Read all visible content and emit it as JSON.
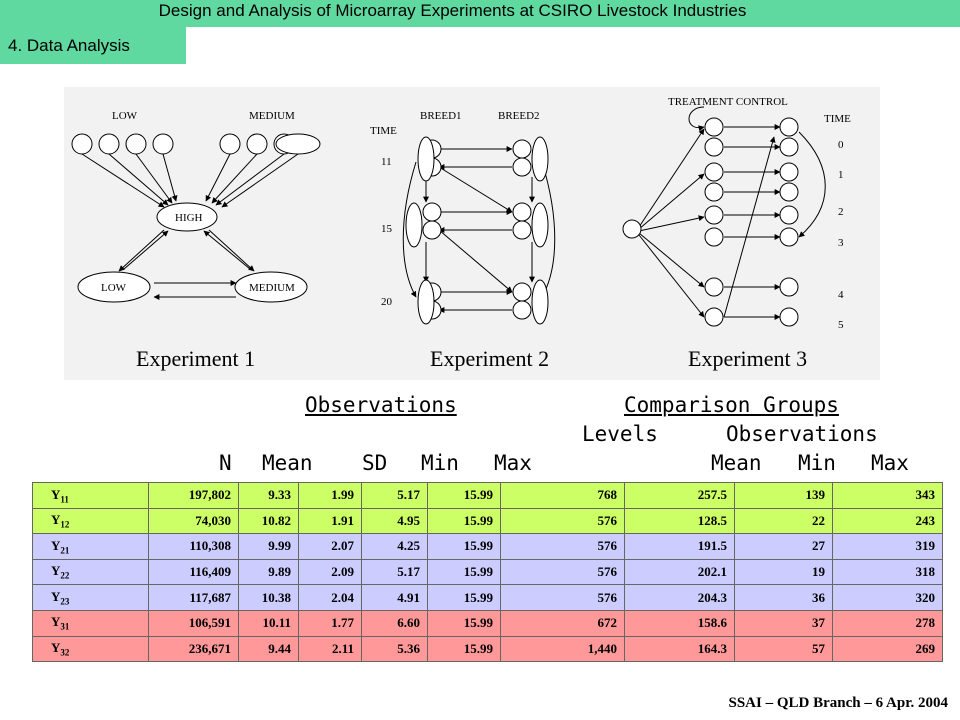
{
  "header": {
    "title": "Design and Analysis of Microarray Experiments at CSIRO Livestock Industries",
    "section": "4. Data Analysis"
  },
  "diagrams": {
    "exp1": {
      "caption": "Experiment 1",
      "low_top": "LOW",
      "medium_top": "MEDIUM",
      "high": "HIGH",
      "low_bottom": "LOW",
      "medium_bottom": "MEDIUM"
    },
    "exp2": {
      "caption": "Experiment 2",
      "time": "TIME",
      "breed1": "BREED1",
      "breed2": "BREED2",
      "t1": "11",
      "t2": "15",
      "t3": "20"
    },
    "exp3": {
      "caption": "Experiment 3",
      "title": "TREATMENT CONTROL",
      "time": "TIME",
      "times": [
        "0",
        "1",
        "2",
        "3",
        "4",
        "5"
      ]
    }
  },
  "table_header": {
    "observations": "Observations",
    "comparison_groups": "Comparison Groups",
    "levels": "Levels",
    "observations2": "Observations",
    "n": "N",
    "mean": "Mean",
    "sd": "SD",
    "min": "Min",
    "max": "Max",
    "mean2": "Mean",
    "min2": "Min",
    "max2": "Max"
  },
  "rows": [
    {
      "label": "Y",
      "sub": "11",
      "color": "#ccff66",
      "n": "197,802",
      "mean": "9.33",
      "sd": "1.99",
      "min": "5.17",
      "max": "15.99",
      "levels": "768",
      "obs_mean": "257.5",
      "obs_min": "139",
      "obs_max": "343"
    },
    {
      "label": "Y",
      "sub": "12",
      "color": "#ccff66",
      "n": "74,030",
      "mean": "10.82",
      "sd": "1.91",
      "min": "4.95",
      "max": "15.99",
      "levels": "576",
      "obs_mean": "128.5",
      "obs_min": "22",
      "obs_max": "243"
    },
    {
      "label": "Y",
      "sub": "21",
      "color": "#ccccff",
      "n": "110,308",
      "mean": "9.99",
      "sd": "2.07",
      "min": "4.25",
      "max": "15.99",
      "levels": "576",
      "obs_mean": "191.5",
      "obs_min": "27",
      "obs_max": "319"
    },
    {
      "label": "Y",
      "sub": "22",
      "color": "#ccccff",
      "n": "116,409",
      "mean": "9.89",
      "sd": "2.09",
      "min": "5.17",
      "max": "15.99",
      "levels": "576",
      "obs_mean": "202.1",
      "obs_min": "19",
      "obs_max": "318"
    },
    {
      "label": "Y",
      "sub": "23",
      "color": "#ccccff",
      "n": "117,687",
      "mean": "10.38",
      "sd": "2.04",
      "min": "4.91",
      "max": "15.99",
      "levels": "576",
      "obs_mean": "204.3",
      "obs_min": "36",
      "obs_max": "320"
    },
    {
      "label": "Y",
      "sub": "31",
      "color": "#ff9999",
      "n": "106,591",
      "mean": "10.11",
      "sd": "1.77",
      "min": "6.60",
      "max": "15.99",
      "levels": "672",
      "obs_mean": "158.6",
      "obs_min": "37",
      "obs_max": "278"
    },
    {
      "label": "Y",
      "sub": "32",
      "color": "#ff9999",
      "n": "236,671",
      "mean": "9.44",
      "sd": "2.11",
      "min": "5.36",
      "max": "15.99",
      "levels": "1,440",
      "obs_mean": "164.3",
      "obs_min": "57",
      "obs_max": "269"
    }
  ],
  "footer": "SSAI – QLD Branch – 6 Apr. 2004"
}
